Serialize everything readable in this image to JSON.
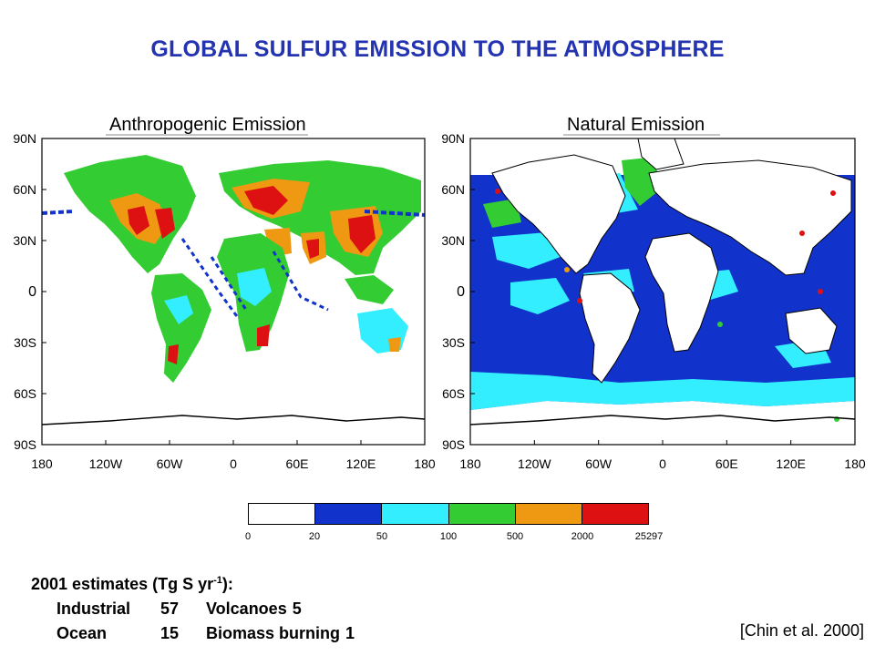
{
  "title": "GLOBAL SULFUR EMISSION TO THE ATMOSPHERE",
  "panels": [
    {
      "title": "Anthropogenic Emission"
    },
    {
      "title": "Natural Emission"
    }
  ],
  "axes": {
    "y_ticks": [
      "90N",
      "60N",
      "30N",
      "0",
      "30S",
      "60S",
      "90S"
    ],
    "x_ticks": [
      "180",
      "120W",
      "60W",
      "0",
      "60E",
      "120E",
      "180"
    ]
  },
  "colorbar": {
    "labels": [
      "0",
      "20",
      "50",
      "100",
      "500",
      "2000",
      "25297"
    ],
    "colors": [
      "#ffffff",
      "#1133cc",
      "#33eeff",
      "#33cc33",
      "#ee9911",
      "#dd1111"
    ]
  },
  "estimates": {
    "heading_pre": "2001 estimates (Tg S yr",
    "heading_sup": "-1",
    "heading_post": "):",
    "rows": [
      {
        "a_label": "Industrial",
        "a_value": "57",
        "b_label": "Volcanoes",
        "b_value": "5"
      },
      {
        "a_label": "Ocean",
        "a_value": "15",
        "b_label": "Biomass burning",
        "b_value": "1"
      }
    ]
  },
  "citation": "[Chin et al. 2000]"
}
